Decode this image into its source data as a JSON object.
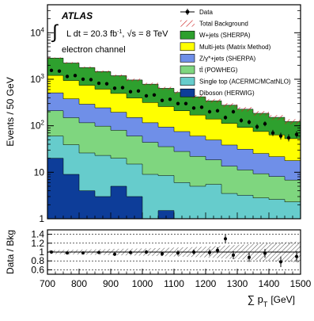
{
  "chart_data": [
    {
      "type": "area",
      "stacked": true,
      "log_y": true,
      "ylabel": "Events / 50 GeV",
      "ylim": [
        1,
        40000
      ],
      "xlim": [
        700,
        1500
      ],
      "y_ticks": [
        {
          "value": 1,
          "base": "1",
          "exp": ""
        },
        {
          "value": 10,
          "base": "10",
          "exp": ""
        },
        {
          "value": 100,
          "base": "10",
          "exp": "2"
        },
        {
          "value": 1000,
          "base": "10",
          "exp": "3"
        },
        {
          "value": 10000,
          "base": "10",
          "exp": "4"
        }
      ],
      "bin_edges": [
        700,
        725,
        750,
        775,
        800,
        825,
        850,
        875,
        900,
        925,
        950,
        975,
        1000,
        1025,
        1050,
        1075,
        1100,
        1125,
        1150,
        1175,
        1200,
        1225,
        1250,
        1275,
        1300,
        1325,
        1350,
        1375,
        1400,
        1425,
        1450,
        1475,
        1500
      ],
      "annotations": {
        "experiment": "ATLAS",
        "lumi_prefix": "L dt = 20.3 fb",
        "lumi_exp": "-1",
        "energy": ", √s = 8 TeV",
        "channel": "electron channel"
      },
      "legend_position": "top-right",
      "legend": [
        {
          "key": "data",
          "label": "Data",
          "color": "#000000"
        },
        {
          "key": "total",
          "label": "Total Background",
          "color": "#cc2222"
        },
        {
          "key": "wjets",
          "label": "W+jets (SHERPA)",
          "color": "#2ea02e"
        },
        {
          "key": "multijet",
          "label": "Multi-jets (Matrix Method)",
          "color": "#ffff00"
        },
        {
          "key": "zjets",
          "label": "Z/γ*+jets (SHERPA)",
          "color": "#6f8fe8"
        },
        {
          "key": "ttbar",
          "label": "tt̄ (POWHEG)",
          "color": "#7fd67f"
        },
        {
          "key": "singletop",
          "label": "Single top (ACERMC/MCatNLO)",
          "color": "#66cccc"
        },
        {
          "key": "diboson",
          "label": "Diboson (HERWIG)",
          "color": "#0d3d99"
        }
      ],
      "series": [
        {
          "key": "diboson",
          "color": "#0d3d99",
          "values": [
            20,
            20,
            9,
            9,
            4,
            4,
            3,
            3,
            5,
            5,
            3,
            3,
            1,
            1,
            1.5,
            1.5,
            1,
            1,
            1,
            1,
            1,
            1,
            1,
            1,
            1,
            1,
            1,
            1,
            1,
            1,
            1,
            1
          ]
        },
        {
          "key": "singletop",
          "color": "#66cccc",
          "values": [
            40,
            40,
            30,
            30,
            22,
            22,
            20,
            20,
            15,
            15,
            12,
            12,
            8,
            8,
            7,
            7,
            5,
            5,
            4,
            4,
            4.5,
            4.5,
            2.5,
            2.5,
            2.2,
            2.2,
            1.8,
            1.8,
            1.6,
            1.6,
            1.3,
            1.3
          ]
        },
        {
          "key": "ttbar",
          "color": "#7fd67f",
          "values": [
            150,
            150,
            110,
            110,
            90,
            90,
            75,
            75,
            60,
            60,
            45,
            45,
            35,
            35,
            27,
            27,
            22,
            22,
            17,
            17,
            13,
            13,
            10,
            10,
            8,
            8,
            6.5,
            6.5,
            5.5,
            5.5,
            4.5,
            4.5
          ]
        },
        {
          "key": "zjets",
          "color": "#6f8fe8",
          "values": [
            300,
            300,
            230,
            230,
            175,
            175,
            145,
            145,
            115,
            115,
            90,
            90,
            72,
            72,
            58,
            58,
            47,
            47,
            38,
            38,
            31,
            31,
            25,
            25,
            20,
            20,
            16,
            16,
            13.5,
            13.5,
            11,
            11
          ]
        },
        {
          "key": "multijet",
          "color": "#ffff00",
          "values": [
            700,
            700,
            560,
            560,
            450,
            450,
            370,
            370,
            300,
            300,
            245,
            245,
            200,
            200,
            165,
            165,
            135,
            135,
            110,
            110,
            90,
            90,
            74,
            74,
            61,
            61,
            50,
            50,
            42,
            42,
            35,
            35
          ]
        },
        {
          "key": "wjets",
          "color": "#2ea02e",
          "values": [
            1650,
            1650,
            1300,
            1300,
            1050,
            1050,
            850,
            850,
            700,
            700,
            570,
            570,
            470,
            470,
            380,
            380,
            310,
            310,
            250,
            250,
            205,
            205,
            165,
            165,
            135,
            135,
            110,
            110,
            88,
            88,
            70,
            70
          ]
        }
      ],
      "data_points": {
        "x": [
          712.5,
          737.5,
          762.5,
          787.5,
          812.5,
          837.5,
          862.5,
          887.5,
          912.5,
          937.5,
          962.5,
          987.5,
          1012.5,
          1037.5,
          1062.5,
          1087.5,
          1112.5,
          1137.5,
          1162.5,
          1187.5,
          1212.5,
          1237.5,
          1262.5,
          1287.5,
          1312.5,
          1337.5,
          1362.5,
          1387.5,
          1412.5,
          1437.5,
          1462.5,
          1487.5
        ],
        "y": [
          1550,
          1500,
          1150,
          1200,
          1000,
          980,
          820,
          800,
          640,
          660,
          540,
          560,
          440,
          460,
          350,
          370,
          300,
          300,
          240,
          250,
          200,
          210,
          150,
          200,
          130,
          120,
          95,
          110,
          70,
          60,
          55,
          65
        ]
      }
    },
    {
      "type": "scatter",
      "ylabel": "Data / Bkg",
      "xlabel": "∑ p",
      "xlabel_sub": "T",
      "xlabel_unit": "[GeV]",
      "xlim": [
        700,
        1500
      ],
      "ylim": [
        0.5,
        1.5
      ],
      "y_ticks": [
        "0.6",
        "0.8",
        "1",
        "1.2",
        "1.4"
      ],
      "x_ticks": [
        "700",
        "800",
        "900",
        "1000",
        "1100",
        "1200",
        "1300",
        "1400",
        "1500"
      ],
      "uncertainty_band": {
        "x": [
          700,
          750,
          800,
          850,
          900,
          950,
          1000,
          1050,
          1100,
          1150,
          1200,
          1250,
          1300,
          1350,
          1400,
          1450,
          1500
        ],
        "half_width": [
          0.04,
          0.05,
          0.055,
          0.06,
          0.07,
          0.075,
          0.08,
          0.09,
          0.1,
          0.11,
          0.12,
          0.14,
          0.16,
          0.18,
          0.2,
          0.22,
          0.24
        ]
      },
      "points": {
        "x": [
          712.5,
          762.5,
          812.5,
          862.5,
          912.5,
          962.5,
          1012.5,
          1062.5,
          1112.5,
          1162.5,
          1212.5,
          1237.5,
          1262.5,
          1287.5,
          1337.5,
          1387.5,
          1437.5,
          1487.5
        ],
        "y": [
          1.0,
          0.98,
          0.98,
          0.99,
          0.95,
          0.99,
          1.0,
          0.96,
          0.98,
          1.0,
          0.99,
          1.04,
          1.3,
          0.93,
          0.88,
          0.97,
          0.78,
          0.9
        ],
        "err": [
          0.02,
          0.02,
          0.025,
          0.03,
          0.035,
          0.04,
          0.045,
          0.05,
          0.06,
          0.06,
          0.07,
          0.07,
          0.09,
          0.09,
          0.1,
          0.1,
          0.12,
          0.12
        ]
      }
    }
  ]
}
